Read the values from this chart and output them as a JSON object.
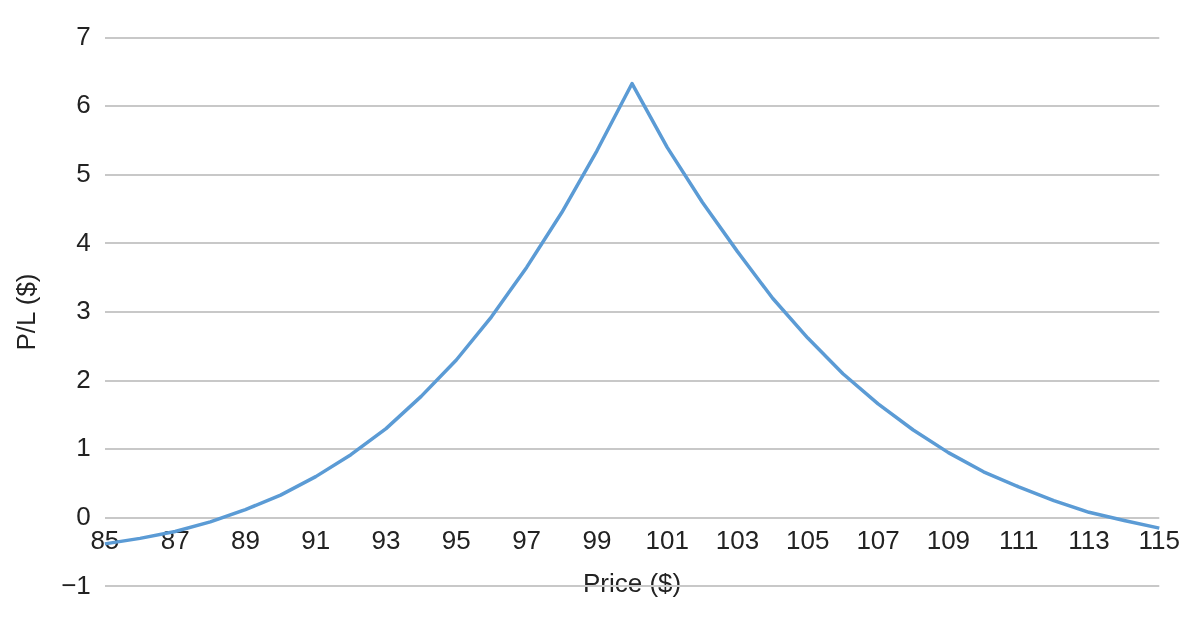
{
  "chart_data": {
    "type": "line",
    "xlabel": "Price ($)",
    "ylabel": "P/L ($)",
    "categories": [
      "85",
      null,
      "87",
      null,
      "89",
      null,
      "91",
      null,
      "93",
      null,
      "95",
      null,
      "97",
      null,
      "99",
      null,
      "101",
      null,
      "103",
      null,
      "105",
      null,
      "107",
      null,
      "109",
      null,
      "111",
      null,
      "113",
      null,
      "115"
    ],
    "series": [
      {
        "color": "#5b9bd5",
        "values": [
          -0.38,
          -0.3,
          -0.2,
          -0.06,
          0.12,
          0.33,
          0.6,
          0.92,
          1.3,
          1.77,
          2.3,
          2.93,
          3.65,
          4.45,
          5.35,
          6.33,
          5.4,
          4.6,
          3.88,
          3.2,
          2.62,
          2.1,
          1.66,
          1.28,
          0.95,
          0.67,
          0.45,
          0.25,
          0.08,
          -0.04,
          -0.15
        ]
      }
    ],
    "ylim": [
      -1,
      7
    ],
    "yticks": [
      {
        "value": -1,
        "label": "−1"
      },
      0,
      1,
      2,
      3,
      4,
      5,
      6,
      7
    ],
    "grid": "y",
    "legend": false,
    "marker": "none",
    "line_style": "solid"
  }
}
